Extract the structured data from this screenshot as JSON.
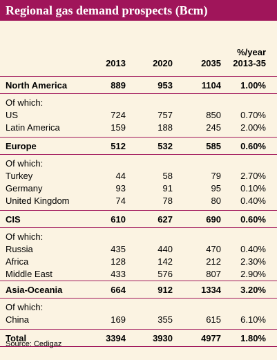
{
  "title": "Regional gas demand prospects (Bcm)",
  "header": {
    "col1": "2013",
    "col2": "2020",
    "col3": "2035",
    "col4_line1": "%/year",
    "col4_line2": "2013-35"
  },
  "of_which": "Of which:",
  "groups": [
    {
      "region": {
        "name": "North America",
        "v2013": "889",
        "v2020": "953",
        "v2035": "1104",
        "pct": "1.00%"
      },
      "items": [
        {
          "name": "US",
          "v2013": "724",
          "v2020": "757",
          "v2035": "850",
          "pct": "0.70%"
        },
        {
          "name": "Latin America",
          "v2013": "159",
          "v2020": "188",
          "v2035": "245",
          "pct": "2.00%"
        }
      ]
    },
    {
      "region": {
        "name": "Europe",
        "v2013": "512",
        "v2020": "532",
        "v2035": "585",
        "pct": "0.60%"
      },
      "items": [
        {
          "name": "Turkey",
          "v2013": "44",
          "v2020": "58",
          "v2035": "79",
          "pct": "2.70%"
        },
        {
          "name": "Germany",
          "v2013": "93",
          "v2020": "91",
          "v2035": "95",
          "pct": "0.10%"
        },
        {
          "name": "United Kingdom",
          "v2013": "74",
          "v2020": "78",
          "v2035": "80",
          "pct": "0.40%"
        }
      ]
    },
    {
      "region": {
        "name": "CIS",
        "v2013": "610",
        "v2020": "627",
        "v2035": "690",
        "pct": "0.60%"
      },
      "items": [
        {
          "name": "Russia",
          "v2013": "435",
          "v2020": "440",
          "v2035": "470",
          "pct": "0.40%"
        },
        {
          "name": "Africa",
          "v2013": "128",
          "v2020": "142",
          "v2035": "212",
          "pct": "2.30%"
        },
        {
          "name": "Middle East",
          "v2013": "433",
          "v2020": "576",
          "v2035": "807",
          "pct": "2.90%"
        }
      ]
    },
    {
      "region": {
        "name": "Asia-Oceania",
        "v2013": "664",
        "v2020": "912",
        "v2035": "1334",
        "pct": "3.20%"
      },
      "items": [
        {
          "name": "China",
          "v2013": "169",
          "v2020": "355",
          "v2035": "615",
          "pct": "6.10%"
        }
      ]
    }
  ],
  "total": {
    "name": "Total",
    "v2013": "3394",
    "v2020": "3930",
    "v2035": "4977",
    "pct": "1.80%"
  },
  "source": "Source: Cedigaz",
  "colors": {
    "accent": "#a0155a",
    "background": "#fbf3e2"
  }
}
